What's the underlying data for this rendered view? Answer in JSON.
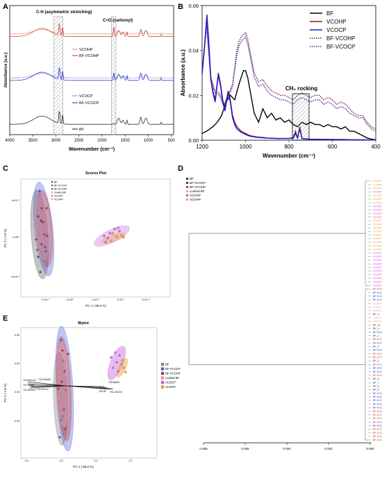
{
  "chart_data": [
    {
      "panel": "A",
      "type": "line",
      "xlabel": "Wavenumber (cm⁻¹)",
      "ylabel": "Absorbance (a.u.)",
      "xlim": [
        4000,
        450
      ],
      "xticks": [
        "4000",
        "3500",
        "3000",
        "2500",
        "2000",
        "1500",
        "1000",
        "500"
      ],
      "annotations": [
        "C-H (asymmetric stretching)",
        "C=O (carbonyl)"
      ],
      "series": [
        {
          "name": "VCOHP",
          "color": "#e58a80",
          "offset": 0.78
        },
        {
          "name": "BF-VCOHP",
          "color": "#c0392b",
          "offset": 0.76
        },
        {
          "name": "VCOCP",
          "color": "#8a88e8",
          "offset": 0.44
        },
        {
          "name": "BF-VCOCP",
          "color": "#2020c0",
          "offset": 0.42
        },
        {
          "name": "BF",
          "color": "#111111",
          "offset": 0.08
        }
      ]
    },
    {
      "panel": "B",
      "type": "line",
      "xlabel": "Wavenumber (cm⁻¹)",
      "ylabel": "Absorbance (a.u.)",
      "xlim": [
        1200,
        400
      ],
      "ylim": [
        0,
        0.06
      ],
      "xticks": [
        "1200",
        "1000",
        "800",
        "600",
        "400"
      ],
      "yticks": [
        "0.00",
        "0.02",
        "0.04",
        "0.06"
      ],
      "annotation": "CH₂ rocking",
      "series": [
        {
          "name": "BF",
          "color": "#000000",
          "style": "solid",
          "x": [
            1200,
            1180,
            1150,
            1130,
            1110,
            1090,
            1070,
            1050,
            1030,
            1010,
            1000,
            990,
            975,
            960,
            940,
            920,
            900,
            880,
            860,
            840,
            820,
            800,
            780,
            760,
            740,
            720,
            700,
            680,
            660,
            640,
            620,
            600,
            580,
            560,
            540,
            520,
            500,
            480,
            460,
            440,
            420,
            400
          ],
          "y": [
            0.003,
            0.004,
            0.006,
            0.008,
            0.011,
            0.017,
            0.02,
            0.018,
            0.025,
            0.031,
            0.031,
            0.028,
            0.02,
            0.012,
            0.008,
            0.014,
            0.01,
            0.012,
            0.009,
            0.01,
            0.008,
            0.009,
            0.007,
            0.006,
            0.008,
            0.007,
            0.008,
            0.007,
            0.007,
            0.006,
            0.007,
            0.006,
            0.006,
            0.005,
            0.006,
            0.004,
            0.004,
            0.003,
            0.002,
            0.001,
            0.0005,
            0.0002
          ]
        },
        {
          "name": "VCOHP",
          "color": "#8b1a1a",
          "style": "solid",
          "x": [
            1200,
            1190,
            1178,
            1170,
            1160,
            1150,
            1140,
            1125,
            1115,
            1105,
            1095,
            1080,
            1070,
            1060,
            1050,
            1040,
            1020,
            1000,
            980,
            950,
            900,
            850,
            800,
            780,
            770,
            760,
            750,
            740,
            720,
            700,
            650,
            600,
            550,
            500,
            450,
            400
          ],
          "y": [
            0.03,
            0.04,
            0.056,
            0.045,
            0.028,
            0.022,
            0.018,
            0.03,
            0.025,
            0.018,
            0.014,
            0.022,
            0.018,
            0.011,
            0.008,
            0.006,
            0.004,
            0.003,
            0.002,
            0.0015,
            0.001,
            0.0008,
            0.0008,
            0.0012,
            0.004,
            0.001,
            0.006,
            0.0008,
            0.0006,
            0.0005,
            0.0004,
            0.0003,
            0.0003,
            0.0002,
            0.0002,
            0.0001
          ]
        },
        {
          "name": "VCOCP",
          "color": "#1a1ae0",
          "style": "solid",
          "x": [
            1200,
            1190,
            1178,
            1170,
            1160,
            1150,
            1140,
            1125,
            1115,
            1105,
            1095,
            1080,
            1070,
            1060,
            1050,
            1040,
            1020,
            1000,
            980,
            950,
            900,
            850,
            800,
            780,
            770,
            760,
            750,
            740,
            720,
            700,
            650,
            600,
            550,
            500,
            450,
            400
          ],
          "y": [
            0.03,
            0.04,
            0.055,
            0.044,
            0.027,
            0.021,
            0.017,
            0.029,
            0.024,
            0.017,
            0.013,
            0.021,
            0.017,
            0.01,
            0.007,
            0.005,
            0.0035,
            0.0025,
            0.0018,
            0.0013,
            0.0009,
            0.0007,
            0.0007,
            0.001,
            0.003,
            0.0009,
            0.005,
            0.0007,
            0.0005,
            0.0004,
            0.0003,
            0.0003,
            0.0002,
            0.0002,
            0.0001,
            0.0001
          ]
        },
        {
          "name": "BF-VCOHP",
          "color": "#7a1a3a",
          "style": "dotted",
          "x": [
            1200,
            1180,
            1160,
            1140,
            1120,
            1100,
            1080,
            1060,
            1040,
            1030,
            1020,
            1010,
            1000,
            990,
            980,
            960,
            940,
            920,
            900,
            880,
            860,
            840,
            820,
            800,
            780,
            760,
            740,
            720,
            700,
            680,
            660,
            640,
            620,
            600,
            580,
            560,
            540,
            520,
            500,
            480,
            460,
            440,
            420,
            400
          ],
          "y": [
            0.03,
            0.053,
            0.028,
            0.022,
            0.021,
            0.016,
            0.02,
            0.025,
            0.04,
            0.044,
            0.046,
            0.047,
            0.048,
            0.045,
            0.04,
            0.03,
            0.026,
            0.027,
            0.024,
            0.022,
            0.021,
            0.02,
            0.02,
            0.019,
            0.018,
            0.02,
            0.021,
            0.02,
            0.019,
            0.02,
            0.02,
            0.018,
            0.019,
            0.018,
            0.016,
            0.017,
            0.016,
            0.014,
            0.012,
            0.011,
            0.011,
            0.008,
            0.006,
            0.005
          ]
        },
        {
          "name": "BF-VCOCP",
          "color": "#3a2aa0",
          "style": "dotted",
          "x": [
            1200,
            1180,
            1160,
            1140,
            1120,
            1100,
            1080,
            1060,
            1040,
            1030,
            1020,
            1010,
            1000,
            990,
            980,
            960,
            940,
            920,
            900,
            880,
            860,
            840,
            820,
            800,
            780,
            760,
            740,
            720,
            700,
            680,
            660,
            640,
            620,
            600,
            580,
            560,
            540,
            520,
            500,
            480,
            460,
            440,
            420,
            400
          ],
          "y": [
            0.029,
            0.051,
            0.027,
            0.021,
            0.02,
            0.015,
            0.019,
            0.024,
            0.038,
            0.042,
            0.044,
            0.045,
            0.046,
            0.043,
            0.038,
            0.028,
            0.024,
            0.025,
            0.022,
            0.02,
            0.019,
            0.018,
            0.018,
            0.017,
            0.016,
            0.018,
            0.019,
            0.018,
            0.017,
            0.018,
            0.018,
            0.016,
            0.017,
            0.016,
            0.014,
            0.015,
            0.014,
            0.012,
            0.011,
            0.01,
            0.01,
            0.007,
            0.005,
            0.004
          ]
        }
      ]
    },
    {
      "panel": "C",
      "type": "scatter",
      "title": "Scores Plot",
      "xlabel": "PC 1 ( 96.6 %)",
      "ylabel": "PC 2 ( 1.8 %)",
      "xticks": [
        "−1×10⁻²",
        "0×10⁰",
        "1×10⁻²",
        "2×10⁻²",
        "3×10⁻²"
      ],
      "yticks": [
        "5×10⁻³",
        "0×10⁰",
        "−5×10⁻³"
      ],
      "legend": [
        {
          "name": "BF",
          "color": "#555555"
        },
        {
          "name": "BF-VCOCP",
          "color": "#4a5ad8"
        },
        {
          "name": "BF-VCOHP",
          "color": "#c0392b"
        },
        {
          "name": "cooked BF",
          "color": "#f2a0b0"
        },
        {
          "name": "VCOCP",
          "color": "#cc66dd"
        },
        {
          "name": "VCOHP",
          "color": "#e8a040"
        }
      ]
    },
    {
      "panel": "D",
      "type": "dendrogram",
      "xticks": [
        "0.008",
        "0.006",
        "0.004",
        "0.002",
        "0.000"
      ],
      "legend": [
        {
          "name": "BF",
          "color": "#333333"
        },
        {
          "name": "BF-VCOCP",
          "color": "#2233cc"
        },
        {
          "name": "BF-VCOHP",
          "color": "#c0392b"
        },
        {
          "name": "cooked BF",
          "color": "#f2a0b0"
        },
        {
          "name": "VCOCP",
          "color": "#cc44dd"
        },
        {
          "name": "VCOHP",
          "color": "#e8a040"
        }
      ],
      "leaves": [
        {
          "label": "VCOHP_13",
          "color": "#e8a040"
        },
        {
          "label": "VCOHP_12",
          "color": "#e8a040"
        },
        {
          "label": "VCOHP_15",
          "color": "#e8a040"
        },
        {
          "label": "VCOCP_11",
          "color": "#cc44dd"
        },
        {
          "label": "VCOHP_11",
          "color": "#e8a040"
        },
        {
          "label": "VCOHP_14",
          "color": "#e8a040"
        },
        {
          "label": "VCOHP_10",
          "color": "#e8a040"
        },
        {
          "label": "VCOCP_15",
          "color": "#cc44dd"
        },
        {
          "label": "VCOCP_12",
          "color": "#cc44dd"
        },
        {
          "label": "VCOCP_13",
          "color": "#cc44dd"
        },
        {
          "label": "VCOCP_14",
          "color": "#cc44dd"
        },
        {
          "label": "VCOHP_9",
          "color": "#e8a040"
        },
        {
          "label": "VCOHP_6",
          "color": "#e8a040"
        },
        {
          "label": "VCOHP_7",
          "color": "#e8a040"
        },
        {
          "label": "VCOHP_8",
          "color": "#e8a040"
        },
        {
          "label": "VCOHP_4",
          "color": "#e8a040"
        },
        {
          "label": "VCOHP_5",
          "color": "#e8a040"
        },
        {
          "label": "VCOHP_3",
          "color": "#e8a040"
        },
        {
          "label": "VCOHP_2",
          "color": "#e8a040"
        },
        {
          "label": "VCOHP_1",
          "color": "#e8a040"
        },
        {
          "label": "VCOCP_10",
          "color": "#cc44dd"
        },
        {
          "label": "VCOCP_9",
          "color": "#cc44dd"
        },
        {
          "label": "VCOCP_7",
          "color": "#cc44dd"
        },
        {
          "label": "VCOCP_4",
          "color": "#cc44dd"
        },
        {
          "label": "VCOCP_8",
          "color": "#cc44dd"
        },
        {
          "label": "VCOCP_6",
          "color": "#cc44dd"
        },
        {
          "label": "VCOCP_5",
          "color": "#cc44dd"
        },
        {
          "label": "VCOCP_3",
          "color": "#cc44dd"
        },
        {
          "label": "VCOCP_2",
          "color": "#cc44dd"
        },
        {
          "label": "VCOCP_1",
          "color": "#cc44dd"
        },
        {
          "label": "BF-VCOHP_9",
          "color": "#c0392b"
        },
        {
          "label": "BF-VCOCP_10",
          "color": "#2233cc"
        },
        {
          "label": "BF-VCOCP_4",
          "color": "#2233cc"
        },
        {
          "label": "BF-VCOCP_2",
          "color": "#2233cc"
        },
        {
          "label": "cooked BF_3",
          "color": "#f2a0b0"
        },
        {
          "label": "cooked BF_2",
          "color": "#f2a0b0"
        },
        {
          "label": "cooked BF_1",
          "color": "#f2a0b0"
        },
        {
          "label": "BF_3",
          "color": "#333333"
        },
        {
          "label": "cooked BF_4",
          "color": "#f2a0b0"
        },
        {
          "label": "cooked BF_5",
          "color": "#f2a0b0"
        },
        {
          "label": "BF_10",
          "color": "#333333"
        },
        {
          "label": "BF_9",
          "color": "#333333"
        },
        {
          "label": "BF-VCOCP_15",
          "color": "#2233cc"
        },
        {
          "label": "BF_1",
          "color": "#333333"
        },
        {
          "label": "BF-VCOHP_14",
          "color": "#c0392b"
        },
        {
          "label": "BF-VCOCP_11",
          "color": "#2233cc"
        },
        {
          "label": "BF_4",
          "color": "#333333"
        },
        {
          "label": "BF-VCOCP_12",
          "color": "#2233cc"
        },
        {
          "label": "BF-VCOHP_13",
          "color": "#c0392b"
        },
        {
          "label": "BF-VCOHP_8",
          "color": "#c0392b"
        },
        {
          "label": "BF_2",
          "color": "#333333"
        },
        {
          "label": "BF-VCOHP_5",
          "color": "#c0392b"
        },
        {
          "label": "BF-VCOCP_9",
          "color": "#2233cc"
        },
        {
          "label": "BF-VCOCP_7",
          "color": "#2233cc"
        },
        {
          "label": "BF-VCOHP_2",
          "color": "#c0392b"
        },
        {
          "label": "BF_8",
          "color": "#333333"
        },
        {
          "label": "BF_7",
          "color": "#333333"
        },
        {
          "label": "BF_6",
          "color": "#333333"
        },
        {
          "label": "BF_5",
          "color": "#333333"
        },
        {
          "label": "BF-VCOCP_6",
          "color": "#2233cc"
        },
        {
          "label": "BF-VCOCP_5",
          "color": "#2233cc"
        },
        {
          "label": "BF-VCOCP_3",
          "color": "#2233cc"
        },
        {
          "label": "BF-VCOCP_13",
          "color": "#2233cc"
        },
        {
          "label": "BF-VCOCP_1",
          "color": "#2233cc"
        },
        {
          "label": "BF-VCOHP_10",
          "color": "#c0392b"
        },
        {
          "label": "BF-VCOHP_11",
          "color": "#c0392b"
        },
        {
          "label": "BF-VCOHP_12",
          "color": "#c0392b"
        },
        {
          "label": "BF-VCOHP_4",
          "color": "#c0392b"
        },
        {
          "label": "BF-VCOCP_14",
          "color": "#2233cc"
        },
        {
          "label": "BF-VCOHP_6",
          "color": "#c0392b"
        },
        {
          "label": "BF-VCOHP_3",
          "color": "#c0392b"
        },
        {
          "label": "BF-VCOHP_7",
          "color": "#c0392b"
        },
        {
          "label": "BF-VCOHP_1",
          "color": "#c0392b"
        }
      ]
    },
    {
      "panel": "E",
      "type": "scatter",
      "title": "Biplot",
      "xlabel": "PC 1 ( 96.6 %)",
      "ylabel": "PC 2 ( 1.8 %)",
      "xticks": [
        "-0.4",
        "-0.2",
        "0.0",
        "0.2"
      ],
      "yticks": [
        "0.50",
        "0.25",
        "0.00",
        "-0.25"
      ],
      "loadings": [
        "723.679/210",
        "725.315465",
        "721.03088",
        "722.442949",
        "719.570412",
        "764.980",
        "762.55",
        "763.65824",
        "761.231192"
      ],
      "legend": [
        {
          "name": "BF",
          "color": "#888888"
        },
        {
          "name": "BF-VCOCP",
          "color": "#4a5ad8"
        },
        {
          "name": "BF-VCOHP",
          "color": "#c0392b"
        },
        {
          "name": "cooked BF",
          "color": "#f2a0b0"
        },
        {
          "name": "VCOCP",
          "color": "#cc66dd"
        },
        {
          "name": "VCOHP",
          "color": "#e8a040"
        }
      ]
    }
  ]
}
